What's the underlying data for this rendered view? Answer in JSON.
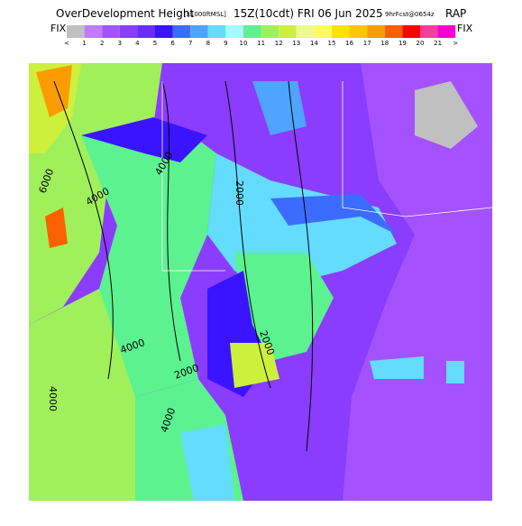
{
  "header": {
    "title": "OverDevelopment Height",
    "units": "[x1000ftMSL]",
    "valid": "15Z(10cdt) FRI 06 Jun 2025",
    "forecast": "9hrFcst@0654z",
    "model": "RAP"
  },
  "legend": {
    "left_label": "FIX",
    "right_label": "FIX",
    "low_label": "<",
    "high_label": ">",
    "labels": [
      1,
      2,
      3,
      4,
      5,
      6,
      7,
      8,
      9,
      10,
      11,
      12,
      13,
      14,
      15,
      16,
      17,
      18,
      19,
      20,
      21
    ],
    "colors": [
      "#c0c0c0",
      "#c07cff",
      "#a452ff",
      "#8a3cff",
      "#6a2cff",
      "#3a14ff",
      "#3c6cff",
      "#4ea4ff",
      "#64dcff",
      "#a4fcff",
      "#5cf290",
      "#a0f05c",
      "#ccf03c",
      "#ecfc8c",
      "#fcfc5c",
      "#fce400",
      "#fcc800",
      "#fc9c00",
      "#fc6000",
      "#fc0000",
      "#fc3c9c",
      "#fc00d0"
    ]
  },
  "map": {
    "contour_labels": [
      "6000",
      "4000",
      "4000",
      "2000",
      "4000",
      "2000",
      "2000",
      "4000",
      "4000"
    ]
  }
}
